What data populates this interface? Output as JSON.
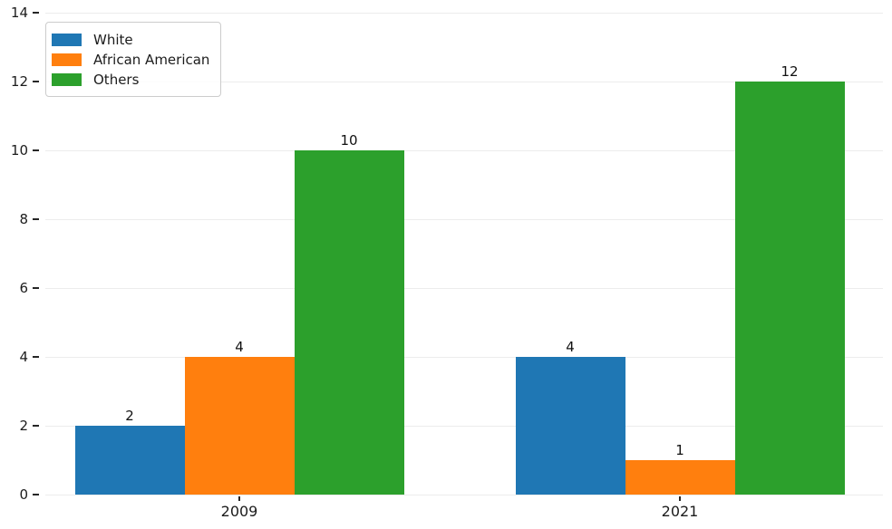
{
  "chart_data": {
    "type": "bar",
    "title": "",
    "xlabel": "",
    "ylabel": "",
    "categories": [
      "2009",
      "2021"
    ],
    "series": [
      {
        "name": "White",
        "color": "#1f77b4",
        "values": [
          2,
          4
        ]
      },
      {
        "name": "African American",
        "color": "#ff7f0e",
        "values": [
          4,
          1
        ]
      },
      {
        "name": "Others",
        "color": "#2ca02c",
        "values": [
          10,
          12
        ]
      }
    ],
    "bar_value_labels": [
      [
        "2",
        "4",
        "10"
      ],
      [
        "4",
        "1",
        "12"
      ]
    ],
    "ylim": [
      0,
      14
    ],
    "yticks": [
      "0",
      "2",
      "4",
      "6",
      "8",
      "10",
      "12",
      "14"
    ],
    "grid": "horizontal",
    "legend_position": "upper-left",
    "show_value_labels": true
  },
  "colors": {
    "background": "#ffffff",
    "gridline": "#ececec",
    "tick_mark": "#262626",
    "tick_text": "#1c1c1c",
    "value_text": "#111111",
    "legend_border": "#cccccc"
  }
}
